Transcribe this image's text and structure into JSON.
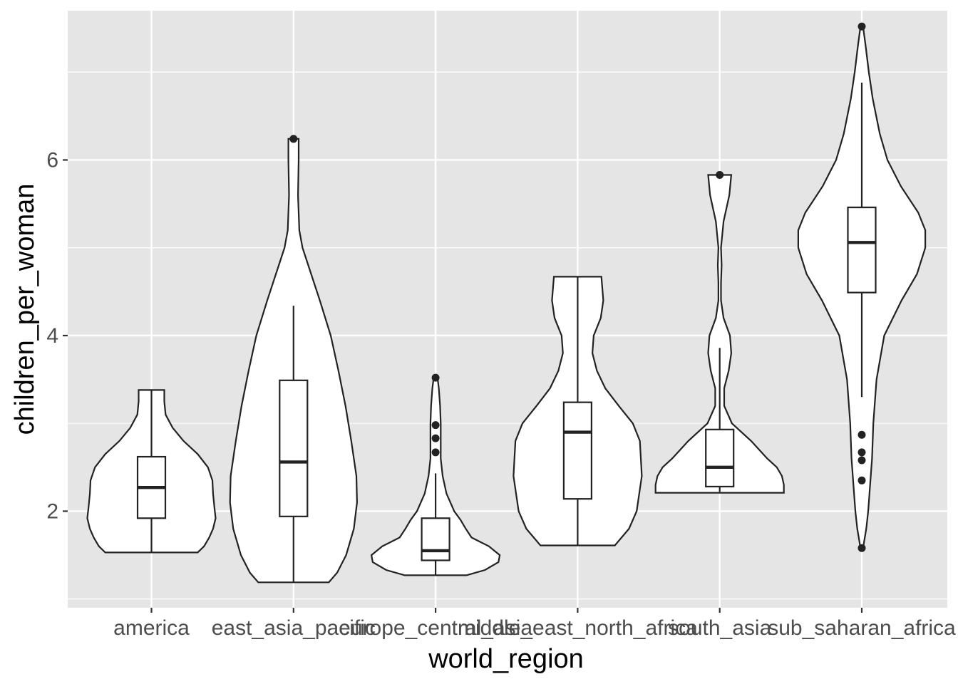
{
  "chart_data": {
    "type": "violin",
    "xlabel": "world_region",
    "ylabel": "children_per_woman",
    "ylim": [
      0.9,
      7.7
    ],
    "yticks": [
      2,
      4,
      6
    ],
    "grid": true,
    "categories": [
      "america",
      "east_asia_pacific",
      "europe_central_asia",
      "middle_east_north_africa",
      "south_asia",
      "sub_saharan_africa"
    ],
    "groups": [
      {
        "name": "america",
        "box": {
          "min": 1.53,
          "q1": 1.92,
          "median": 2.27,
          "q3": 2.62,
          "max": 3.38
        },
        "outliers": [],
        "density": [
          [
            1.53,
            0.72
          ],
          [
            1.6,
            0.82
          ],
          [
            1.7,
            0.9
          ],
          [
            1.8,
            0.96
          ],
          [
            1.92,
            1.0
          ],
          [
            2.05,
            0.98
          ],
          [
            2.2,
            0.96
          ],
          [
            2.35,
            0.95
          ],
          [
            2.5,
            0.88
          ],
          [
            2.65,
            0.72
          ],
          [
            2.8,
            0.5
          ],
          [
            2.95,
            0.33
          ],
          [
            3.1,
            0.22
          ],
          [
            3.25,
            0.2
          ],
          [
            3.38,
            0.2
          ]
        ]
      },
      {
        "name": "east_asia_pacific",
        "box": {
          "min": 1.19,
          "q1": 1.94,
          "median": 2.56,
          "q3": 3.49,
          "max": 4.34
        },
        "outliers": [
          6.24
        ],
        "density": [
          [
            1.19,
            0.55
          ],
          [
            1.3,
            0.68
          ],
          [
            1.5,
            0.82
          ],
          [
            1.8,
            0.94
          ],
          [
            2.1,
            0.99
          ],
          [
            2.4,
            0.98
          ],
          [
            2.8,
            0.9
          ],
          [
            3.2,
            0.81
          ],
          [
            3.6,
            0.7
          ],
          [
            4.0,
            0.58
          ],
          [
            4.4,
            0.41
          ],
          [
            4.8,
            0.23
          ],
          [
            5.0,
            0.14
          ],
          [
            5.2,
            0.09
          ],
          [
            5.6,
            0.07
          ],
          [
            6.0,
            0.08
          ],
          [
            6.24,
            0.08
          ]
        ]
      },
      {
        "name": "europe_central_asia",
        "box": {
          "min": 1.27,
          "q1": 1.44,
          "median": 1.55,
          "q3": 1.92,
          "max": 2.43
        },
        "outliers": [
          2.67,
          2.83,
          2.98,
          3.52
        ],
        "density": [
          [
            1.27,
            0.48
          ],
          [
            1.33,
            0.77
          ],
          [
            1.42,
            0.98
          ],
          [
            1.5,
            1.0
          ],
          [
            1.6,
            0.83
          ],
          [
            1.7,
            0.56
          ],
          [
            1.8,
            0.47
          ],
          [
            1.9,
            0.39
          ],
          [
            2.0,
            0.29
          ],
          [
            2.2,
            0.17
          ],
          [
            2.4,
            0.11
          ],
          [
            2.6,
            0.08
          ],
          [
            2.8,
            0.08
          ],
          [
            3.0,
            0.08
          ],
          [
            3.2,
            0.07
          ],
          [
            3.4,
            0.05
          ],
          [
            3.52,
            0.03
          ]
        ]
      },
      {
        "name": "middle_east_north_africa",
        "box": {
          "min": 1.61,
          "q1": 2.14,
          "median": 2.9,
          "q3": 3.24,
          "max": 4.67
        },
        "outliers": [],
        "density": [
          [
            1.61,
            0.58
          ],
          [
            1.8,
            0.8
          ],
          [
            2.0,
            0.92
          ],
          [
            2.4,
            1.0
          ],
          [
            2.8,
            0.97
          ],
          [
            3.0,
            0.86
          ],
          [
            3.2,
            0.64
          ],
          [
            3.4,
            0.43
          ],
          [
            3.6,
            0.3
          ],
          [
            3.8,
            0.23
          ],
          [
            4.0,
            0.25
          ],
          [
            4.2,
            0.36
          ],
          [
            4.4,
            0.4
          ],
          [
            4.67,
            0.37
          ]
        ]
      },
      {
        "name": "south_asia",
        "box": {
          "min": 2.22,
          "q1": 2.28,
          "median": 2.5,
          "q3": 2.93,
          "max": 3.86
        },
        "outliers": [
          5.83
        ],
        "density": [
          [
            2.21,
            1.0
          ],
          [
            2.3,
            1.0
          ],
          [
            2.4,
            0.97
          ],
          [
            2.5,
            0.89
          ],
          [
            2.6,
            0.74
          ],
          [
            2.8,
            0.49
          ],
          [
            3.0,
            0.19
          ],
          [
            3.2,
            0.07
          ],
          [
            3.4,
            0.07
          ],
          [
            3.6,
            0.14
          ],
          [
            3.8,
            0.18
          ],
          [
            4.0,
            0.16
          ],
          [
            4.2,
            0.06
          ],
          [
            4.4,
            0.02
          ],
          [
            4.6,
            0.02
          ],
          [
            4.8,
            0.03
          ],
          [
            5.0,
            0.02
          ],
          [
            5.3,
            0.06
          ],
          [
            5.6,
            0.15
          ],
          [
            5.83,
            0.18
          ]
        ]
      },
      {
        "name": "sub_saharan_africa",
        "box": {
          "min": 3.3,
          "q1": 4.49,
          "median": 5.06,
          "q3": 5.46,
          "max": 6.88
        },
        "outliers": [
          1.58,
          2.35,
          2.58,
          2.67,
          2.87,
          7.52
        ],
        "density": [
          [
            1.58,
            0.02
          ],
          [
            1.8,
            0.07
          ],
          [
            2.0,
            0.1
          ],
          [
            2.3,
            0.13
          ],
          [
            2.6,
            0.16
          ],
          [
            3.0,
            0.18
          ],
          [
            3.5,
            0.23
          ],
          [
            4.0,
            0.35
          ],
          [
            4.4,
            0.62
          ],
          [
            4.7,
            0.86
          ],
          [
            5.0,
            0.99
          ],
          [
            5.2,
            0.99
          ],
          [
            5.4,
            0.88
          ],
          [
            5.7,
            0.61
          ],
          [
            6.0,
            0.4
          ],
          [
            6.3,
            0.28
          ],
          [
            6.7,
            0.17
          ],
          [
            7.0,
            0.11
          ],
          [
            7.3,
            0.06
          ],
          [
            7.52,
            0.02
          ]
        ]
      }
    ]
  }
}
